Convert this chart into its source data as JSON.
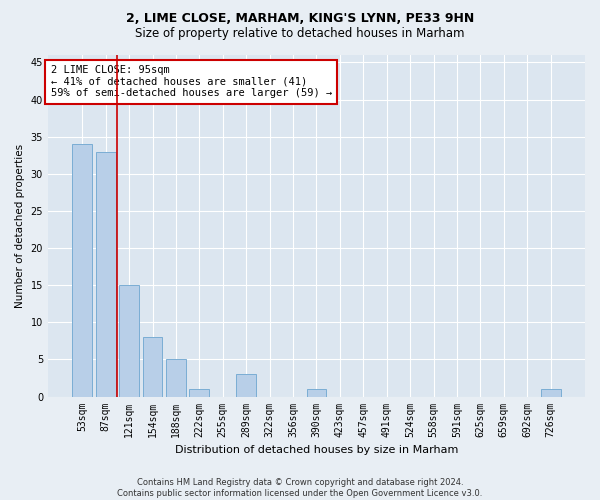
{
  "title1": "2, LIME CLOSE, MARHAM, KING'S LYNN, PE33 9HN",
  "title2": "Size of property relative to detached houses in Marham",
  "xlabel": "Distribution of detached houses by size in Marham",
  "ylabel": "Number of detached properties",
  "categories": [
    "53sqm",
    "87sqm",
    "121sqm",
    "154sqm",
    "188sqm",
    "222sqm",
    "255sqm",
    "289sqm",
    "322sqm",
    "356sqm",
    "390sqm",
    "423sqm",
    "457sqm",
    "491sqm",
    "524sqm",
    "558sqm",
    "591sqm",
    "625sqm",
    "659sqm",
    "692sqm",
    "726sqm"
  ],
  "values": [
    34,
    33,
    15,
    8,
    5,
    1,
    0,
    3,
    0,
    0,
    1,
    0,
    0,
    0,
    0,
    0,
    0,
    0,
    0,
    0,
    1
  ],
  "bar_color": "#b8cfe8",
  "bar_edge_color": "#7aadd4",
  "vline_x_index": 1.5,
  "vline_color": "#cc0000",
  "annotation_line1": "2 LIME CLOSE: 95sqm",
  "annotation_line2": "← 41% of detached houses are smaller (41)",
  "annotation_line3": "59% of semi-detached houses are larger (59) →",
  "annotation_box_color": "#cc0000",
  "ylim": [
    0,
    46
  ],
  "yticks": [
    0,
    5,
    10,
    15,
    20,
    25,
    30,
    35,
    40,
    45
  ],
  "footer": "Contains HM Land Registry data © Crown copyright and database right 2024.\nContains public sector information licensed under the Open Government Licence v3.0.",
  "bg_color": "#e8eef4",
  "plot_bg_color": "#dce6f0",
  "title1_fontsize": 9,
  "title2_fontsize": 8.5,
  "xlabel_fontsize": 8,
  "ylabel_fontsize": 7.5,
  "tick_fontsize": 7,
  "annot_fontsize": 7.5,
  "footer_fontsize": 6
}
